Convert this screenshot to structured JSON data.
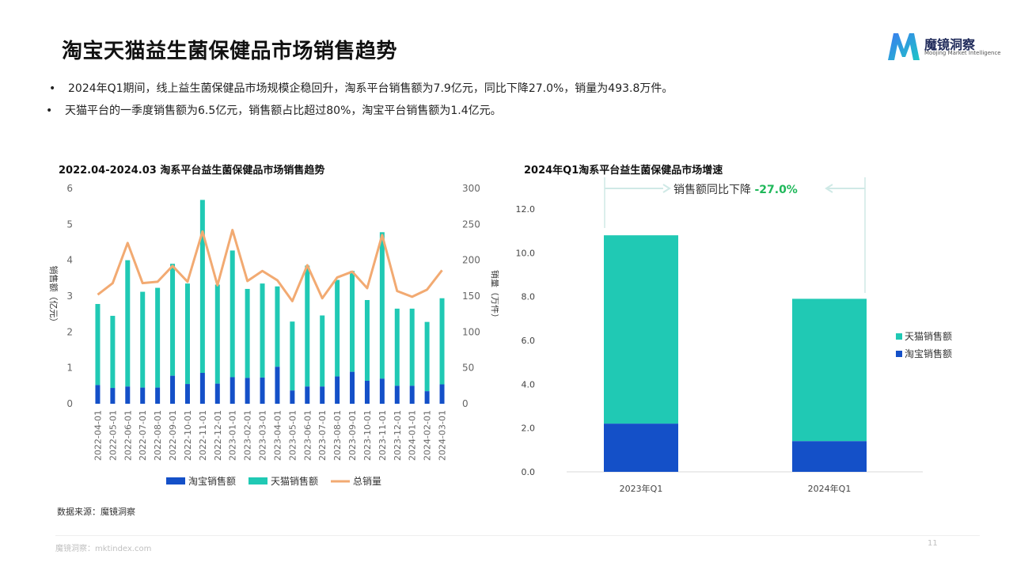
{
  "page": {
    "title": "淘宝天猫益生菌保健品市场销售趋势",
    "logo_text": "魔镜洞察",
    "logo_sub": "Moojing Market Intelligence",
    "bullet_mark": "•",
    "bullets": [
      "2024年Q1期间，线上益生菌保健品市场规模企稳回升，淘系平台销售额为7.9亿元，同比下降27.0%，销量为493.8万件。",
      "天猫平台的一季度销售额为6.5亿元，销售额占比超过80%，淘宝平台销售额为1.4亿元。"
    ],
    "source": "数据来源：魔镜洞察",
    "footer": "魔镜洞察：mktindex.com",
    "page_number": "11"
  },
  "colors": {
    "taobao": "#1450c8",
    "tmall": "#20c9b4",
    "total": "#f2aa72",
    "axis": "#666666",
    "green": "#1fb85a"
  },
  "chart_data": [
    {
      "type": "bar",
      "stacked": true,
      "title": "2022.04-2024.03 淘系平台益生菌保健品市场销售趋势",
      "ylabel": "销售额（亿元）",
      "y2label": "销量（万件）",
      "ylim": [
        0,
        6
      ],
      "y2lim": [
        0,
        300
      ],
      "yticks": [
        "0",
        "1",
        "2",
        "3",
        "4",
        "5",
        "6"
      ],
      "y2ticks": [
        "0",
        "50",
        "100",
        "150",
        "200",
        "250",
        "300"
      ],
      "categories": [
        "2022-04-01",
        "2022-05-01",
        "2022-06-01",
        "2022-07-01",
        "2022-08-01",
        "2022-09-01",
        "2022-10-01",
        "2022-11-01",
        "2022-12-01",
        "2023-01-01",
        "2023-02-01",
        "2023-03-01",
        "2023-04-01",
        "2023-05-01",
        "2023-06-01",
        "2023-07-01",
        "2023-08-01",
        "2023-09-01",
        "2023-10-01",
        "2023-11-01",
        "2023-12-01",
        "2024-01-01",
        "2024-02-01",
        "2024-03-01"
      ],
      "series": [
        {
          "name": "淘宝销售额",
          "type": "bar",
          "axis": "left",
          "values": [
            0.52,
            0.44,
            0.48,
            0.45,
            0.45,
            0.78,
            0.55,
            0.86,
            0.56,
            0.74,
            0.72,
            0.73,
            1.03,
            0.37,
            0.48,
            0.48,
            0.76,
            0.89,
            0.64,
            0.7,
            0.5,
            0.5,
            0.35,
            0.54
          ]
        },
        {
          "name": "天猫销售额",
          "type": "bar",
          "axis": "left",
          "values": [
            2.26,
            2.01,
            3.52,
            2.67,
            2.78,
            3.12,
            2.8,
            4.82,
            2.76,
            3.53,
            2.48,
            2.62,
            2.24,
            1.92,
            3.37,
            1.98,
            2.69,
            2.81,
            2.25,
            4.08,
            2.15,
            2.15,
            1.93,
            2.4
          ]
        },
        {
          "name": "总销量",
          "type": "line",
          "axis": "right",
          "values": [
            152,
            168,
            224,
            168,
            170,
            192,
            170,
            240,
            165,
            242,
            171,
            185,
            172,
            143,
            193,
            147,
            176,
            184,
            161,
            235,
            157,
            149,
            159,
            186
          ]
        }
      ],
      "legend": "bottom"
    },
    {
      "type": "bar",
      "stacked": true,
      "title": "2024年Q1淘系平台益生菌保健品市场增速",
      "categories": [
        "2023年Q1",
        "2024年Q1"
      ],
      "ylim": [
        0,
        12
      ],
      "yticks": [
        "0.0",
        "2.0",
        "4.0",
        "6.0",
        "8.0",
        "10.0",
        "12.0"
      ],
      "series": [
        {
          "name": "淘宝销售额",
          "values": [
            2.2,
            1.4
          ]
        },
        {
          "name": "天猫销售额",
          "values": [
            8.6,
            6.5
          ]
        }
      ],
      "annotation": {
        "label": "销售额同比下降 ",
        "value": "-27.0%"
      },
      "legend": "right",
      "legend_order": [
        "天猫销售额",
        "淘宝销售额"
      ]
    }
  ]
}
